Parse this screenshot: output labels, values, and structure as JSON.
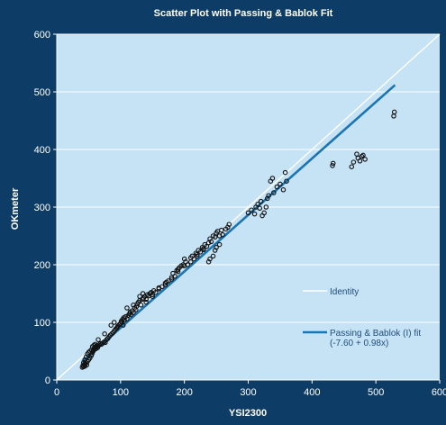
{
  "colors": {
    "page_background": "#0d3d66",
    "plot_background": "#c6e2f5",
    "gridline": "#ffffff",
    "identity_line": "#ffffff",
    "fit_line": "#1a75b0",
    "marker": "#111111",
    "text": "#ffffff",
    "legend_text": "#1f4f7a"
  },
  "chart_data": {
    "type": "scatter",
    "title": "Scatter Plot with Passing & Bablok Fit",
    "xlabel": "YSI2300",
    "ylabel": "OKmeter",
    "xlim": [
      0,
      600
    ],
    "ylim": [
      0,
      600
    ],
    "x_ticks": [
      0,
      100,
      200,
      300,
      400,
      500,
      600
    ],
    "y_ticks": [
      0,
      100,
      200,
      300,
      400,
      500,
      600
    ],
    "grid": "horizontal",
    "legend_position": "bottom-right",
    "legend": [
      {
        "label": "Identity",
        "sublabel": "",
        "color": "#ffffff"
      },
      {
        "label": "Passing & Bablok (I) fit",
        "sublabel": "(-7.60 + 0.98x)",
        "color": "#1a75b0"
      }
    ],
    "identity_line": {
      "intercept": 0,
      "slope": 1
    },
    "fit_line": {
      "intercept": -7.6,
      "slope": 0.98,
      "x_range": [
        40,
        530
      ]
    },
    "points": [
      [
        40,
        22
      ],
      [
        41,
        25
      ],
      [
        42,
        23
      ],
      [
        43,
        27
      ],
      [
        44,
        24
      ],
      [
        45,
        28
      ],
      [
        46,
        30
      ],
      [
        47,
        26
      ],
      [
        48,
        32
      ],
      [
        50,
        35
      ],
      [
        52,
        38
      ],
      [
        54,
        42
      ],
      [
        55,
        45
      ],
      [
        56,
        48
      ],
      [
        57,
        50
      ],
      [
        58,
        52
      ],
      [
        59,
        55
      ],
      [
        60,
        57
      ],
      [
        61,
        54
      ],
      [
        62,
        58
      ],
      [
        63,
        60
      ],
      [
        64,
        56
      ],
      [
        65,
        59
      ],
      [
        66,
        61
      ],
      [
        68,
        63
      ],
      [
        70,
        62
      ],
      [
        72,
        64
      ],
      [
        74,
        66
      ],
      [
        76,
        65
      ],
      [
        78,
        70
      ],
      [
        80,
        72
      ],
      [
        82,
        75
      ],
      [
        84,
        78
      ],
      [
        86,
        80
      ],
      [
        88,
        82
      ],
      [
        90,
        85
      ],
      [
        92,
        88
      ],
      [
        94,
        90
      ],
      [
        95,
        92
      ],
      [
        96,
        94
      ],
      [
        98,
        96
      ],
      [
        100,
        98
      ],
      [
        101,
        102
      ],
      [
        102,
        100
      ],
      [
        103,
        105
      ],
      [
        104,
        95
      ],
      [
        105,
        108
      ],
      [
        106,
        104
      ],
      [
        108,
        110
      ],
      [
        110,
        106
      ],
      [
        112,
        112
      ],
      [
        114,
        115
      ],
      [
        115,
        118
      ],
      [
        116,
        113
      ],
      [
        118,
        120
      ],
      [
        120,
        117
      ],
      [
        122,
        125
      ],
      [
        124,
        122
      ],
      [
        125,
        128
      ],
      [
        126,
        132
      ],
      [
        128,
        135
      ],
      [
        130,
        138
      ],
      [
        132,
        130
      ],
      [
        134,
        140
      ],
      [
        136,
        142
      ],
      [
        138,
        145
      ],
      [
        140,
        140
      ],
      [
        142,
        148
      ],
      [
        144,
        146
      ],
      [
        146,
        150
      ],
      [
        148,
        152
      ],
      [
        150,
        148
      ],
      [
        152,
        155
      ],
      [
        155,
        152
      ],
      [
        160,
        160
      ],
      [
        165,
        162
      ],
      [
        170,
        165
      ],
      [
        172,
        170
      ],
      [
        175,
        172
      ],
      [
        180,
        178
      ],
      [
        182,
        185
      ],
      [
        185,
        180
      ],
      [
        188,
        190
      ],
      [
        190,
        188
      ],
      [
        192,
        195
      ],
      [
        195,
        198
      ],
      [
        198,
        200
      ],
      [
        200,
        210
      ],
      [
        202,
        205
      ],
      [
        205,
        200
      ],
      [
        210,
        212
      ],
      [
        212,
        215
      ],
      [
        215,
        210
      ],
      [
        218,
        220
      ],
      [
        220,
        218
      ],
      [
        222,
        225
      ],
      [
        225,
        222
      ],
      [
        228,
        230
      ],
      [
        230,
        228
      ],
      [
        232,
        235
      ],
      [
        235,
        232
      ],
      [
        238,
        238
      ],
      [
        240,
        245
      ],
      [
        242,
        240
      ],
      [
        245,
        250
      ],
      [
        248,
        248
      ],
      [
        250,
        255
      ],
      [
        252,
        258
      ],
      [
        255,
        250
      ],
      [
        258,
        260
      ],
      [
        260,
        252
      ],
      [
        265,
        262
      ],
      [
        268,
        265
      ],
      [
        270,
        270
      ],
      [
        240,
        210
      ],
      [
        245,
        215
      ],
      [
        238,
        205
      ],
      [
        250,
        230
      ],
      [
        255,
        235
      ],
      [
        248,
        225
      ],
      [
        300,
        290
      ],
      [
        305,
        295
      ],
      [
        310,
        288
      ],
      [
        312,
        300
      ],
      [
        315,
        305
      ],
      [
        318,
        298
      ],
      [
        320,
        310
      ],
      [
        322,
        285
      ],
      [
        325,
        290
      ],
      [
        328,
        300
      ],
      [
        330,
        315
      ],
      [
        332,
        320
      ],
      [
        335,
        345
      ],
      [
        338,
        350
      ],
      [
        340,
        325
      ],
      [
        345,
        335
      ],
      [
        350,
        340
      ],
      [
        355,
        330
      ],
      [
        358,
        360
      ],
      [
        360,
        345
      ],
      [
        432,
        372
      ],
      [
        433,
        376
      ],
      [
        462,
        370
      ],
      [
        465,
        378
      ],
      [
        470,
        392
      ],
      [
        472,
        385
      ],
      [
        475,
        380
      ],
      [
        478,
        388
      ],
      [
        480,
        390
      ],
      [
        483,
        383
      ],
      [
        528,
        458
      ],
      [
        529,
        465
      ],
      [
        110,
        125
      ],
      [
        120,
        130
      ],
      [
        130,
        145
      ],
      [
        135,
        150
      ],
      [
        90,
        100
      ],
      [
        85,
        95
      ],
      [
        75,
        80
      ],
      [
        65,
        70
      ],
      [
        60,
        62
      ],
      [
        58,
        60
      ],
      [
        56,
        58
      ],
      [
        54,
        52
      ],
      [
        52,
        50
      ],
      [
        50,
        48
      ],
      [
        48,
        45
      ],
      [
        46,
        40
      ],
      [
        44,
        35
      ],
      [
        42,
        30
      ],
      [
        140,
        135
      ],
      [
        150,
        145
      ],
      [
        160,
        158
      ],
      [
        170,
        168
      ],
      [
        180,
        175
      ],
      [
        190,
        192
      ],
      [
        200,
        198
      ],
      [
        210,
        205
      ],
      [
        220,
        215
      ],
      [
        230,
        226
      ]
    ]
  }
}
